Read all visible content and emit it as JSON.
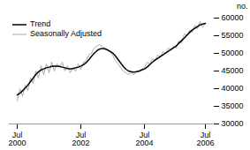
{
  "chart_data": {
    "type": "line",
    "y_label": "no.",
    "categories": [
      "Jul\n2000",
      null,
      null,
      null,
      null,
      null,
      null,
      null,
      null,
      null,
      null,
      null,
      null,
      null,
      null,
      null,
      null,
      null,
      null,
      null,
      null,
      null,
      null,
      null,
      "Jul\n2002",
      null,
      null,
      null,
      null,
      null,
      null,
      null,
      null,
      null,
      null,
      null,
      null,
      null,
      null,
      null,
      null,
      null,
      null,
      null,
      null,
      null,
      null,
      null,
      "Jul\n2004",
      null,
      null,
      null,
      null,
      null,
      null,
      null,
      null,
      null,
      null,
      null,
      null,
      null,
      null,
      null,
      null,
      null,
      null,
      null,
      null,
      null,
      null,
      "Jul\n2006"
    ],
    "series": [
      {
        "name": "Trend",
        "color": "#000000",
        "values": [
          38200,
          38700,
          39400,
          40200,
          41000,
          42000,
          43000,
          44000,
          44800,
          45300,
          45600,
          45900,
          46100,
          46300,
          46400,
          46400,
          46300,
          46100,
          45900,
          45700,
          45600,
          45700,
          45900,
          46100,
          46400,
          46800,
          47400,
          48200,
          49100,
          50000,
          50700,
          51200,
          51400,
          51300,
          51000,
          50600,
          50100,
          49300,
          48300,
          47300,
          46300,
          45500,
          45000,
          44800,
          44700,
          44800,
          45000,
          45300,
          45600,
          46100,
          46800,
          47500,
          48100,
          48600,
          49100,
          49600,
          50100,
          50600,
          51100,
          51600,
          52100,
          52900,
          53600,
          54300,
          55100,
          55900,
          56600,
          57100,
          57600,
          58100,
          58300,
          58500
        ]
      },
      {
        "name": "Seasonally Adjusted",
        "color": "#aaaaaa",
        "values": [
          36500,
          40000,
          38000,
          41000,
          39500,
          43000,
          41500,
          45000,
          43000,
          46500,
          44000,
          47000,
          44500,
          47500,
          45000,
          47000,
          46000,
          47500,
          45000,
          46500,
          44500,
          46000,
          45000,
          47000,
          45500,
          47500,
          48000,
          49500,
          50000,
          51500,
          52000,
          52500,
          52000,
          51500,
          51000,
          50500,
          49500,
          48000,
          47000,
          46000,
          45000,
          44500,
          44000,
          44500,
          44000,
          45000,
          44800,
          45500,
          46000,
          47500,
          47000,
          48500,
          48000,
          49500,
          49000,
          50500,
          50000,
          51500,
          51000,
          52000,
          51500,
          53500,
          53000,
          55500,
          55000,
          56500,
          56000,
          58000,
          57000,
          59000,
          57500,
          58500
        ]
      }
    ],
    "ylim": [
      30000,
      60000
    ],
    "yticks": [
      30000,
      35000,
      40000,
      45000,
      50000,
      55000,
      60000
    ],
    "grid": false,
    "legend": "upper left"
  }
}
